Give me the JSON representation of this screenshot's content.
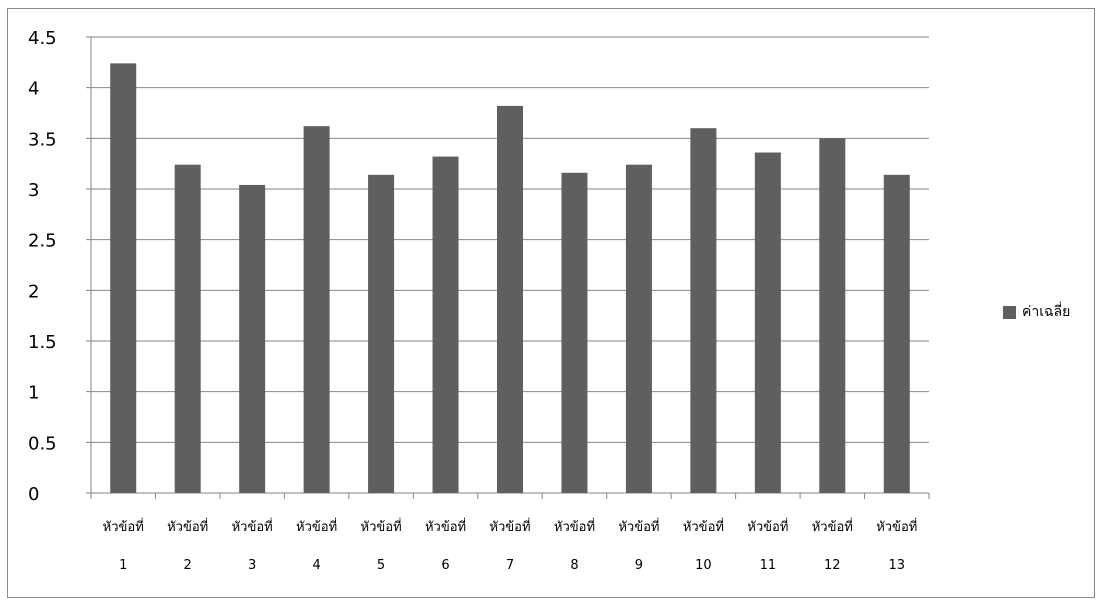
{
  "chart_data": {
    "type": "bar",
    "categories": [
      [
        "หัวข้อที่",
        "1"
      ],
      [
        "หัวข้อที่",
        "2"
      ],
      [
        "หัวข้อที่",
        "3"
      ],
      [
        "หัวข้อที่",
        "4"
      ],
      [
        "หัวข้อที่",
        "5"
      ],
      [
        "หัวข้อที่",
        "6"
      ],
      [
        "หัวข้อที่",
        "7"
      ],
      [
        "หัวข้อที่",
        "8"
      ],
      [
        "หัวข้อที่",
        "9"
      ],
      [
        "หัวข้อที่",
        "10"
      ],
      [
        "หัวข้อที่",
        "11"
      ],
      [
        "หัวข้อที่",
        "12"
      ],
      [
        "หัวข้อที่",
        "13"
      ]
    ],
    "series": [
      {
        "name": "ค่าเฉลี่ย",
        "values": [
          4.24,
          3.24,
          3.04,
          3.62,
          3.14,
          3.32,
          3.82,
          3.16,
          3.24,
          3.6,
          3.36,
          3.5,
          3.14
        ]
      }
    ],
    "title": "",
    "xlabel": "",
    "ylabel": "",
    "ylim": [
      0,
      4.5
    ],
    "yticks": [
      "0",
      "0.5",
      "1",
      "1.5",
      "2",
      "2.5",
      "3",
      "3.5",
      "4",
      "4.5"
    ],
    "grid": true,
    "legend_position": "right",
    "colors": {
      "bar": "#5f5f5f",
      "grid": "#868686",
      "axis": "#868686",
      "border": "#888888"
    }
  }
}
